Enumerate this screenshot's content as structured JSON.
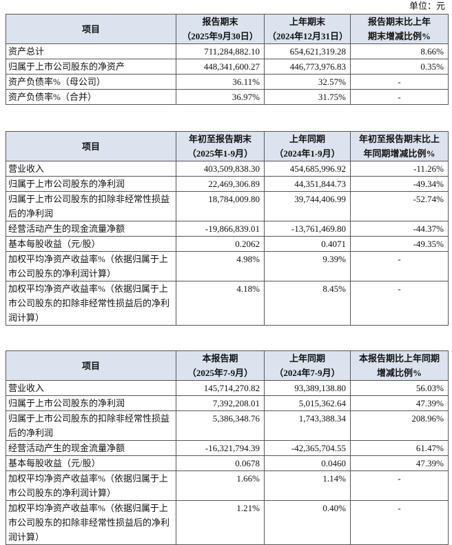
{
  "unit": "单位：元",
  "tables": [
    {
      "header": [
        [
          "项目"
        ],
        [
          "报告期末",
          "（2025年9月30日）"
        ],
        [
          "上年期末",
          "（2024年12月31日）"
        ],
        [
          "报告期末比上年",
          "期末增减比例%"
        ]
      ],
      "rows": [
        [
          "资产总计",
          "711,284,882.10",
          "654,621,319.28",
          "8.66%"
        ],
        [
          "归属于上市公司股东的净资产",
          "448,341,600.27",
          "446,773,976.83",
          "0.35%"
        ],
        [
          "资产负债率%（母公司）",
          "36.11%",
          "32.57%",
          "-"
        ],
        [
          "资产负债率%（合并）",
          "36.97%",
          "31.75%",
          "-"
        ]
      ]
    },
    {
      "header": [
        [
          "项目"
        ],
        [
          "年初至报告期末",
          "（2025年1-9月）"
        ],
        [
          "上年同期",
          "（2024年1-9月）"
        ],
        [
          "年初至报告期末比上",
          "年同期增减比例%"
        ]
      ],
      "rows": [
        [
          "营业收入",
          "403,509,838.30",
          "454,685,996.92",
          "-11.26%"
        ],
        [
          "归属于上市公司股东的净利润",
          "22,469,306.89",
          "44,351,844.73",
          "-49.34%"
        ],
        [
          "归属于上市公司股东的扣除非经常性损益后的净利润",
          "18,784,009.80",
          "39,744,406.99",
          "-52.74%"
        ],
        [
          "经营活动产生的现金流量净额",
          "-19,866,839.01",
          "-13,761,469.80",
          "-44.37%"
        ],
        [
          "基本每股收益（元/股）",
          "0.2062",
          "0.4071",
          "-49.35%"
        ],
        [
          "加权平均净资产收益率%（依据归属于上市公司股东的净利润计算）",
          "4.98%",
          "9.39%",
          "-"
        ],
        [
          "加权平均净资产收益率%（依据归属于上市公司股东的扣除非经常性损益后的净利润计算）",
          "4.18%",
          "8.45%",
          "-"
        ]
      ]
    },
    {
      "header": [
        [
          "项目"
        ],
        [
          "本报告期",
          "（2025年7-9月）"
        ],
        [
          "上年同期",
          "（2024年7-9月）"
        ],
        [
          "本报告期比上年同期",
          "增减比例%"
        ]
      ],
      "rows": [
        [
          "营业收入",
          "145,714,270.82",
          "93,389,138.80",
          "56.03%"
        ],
        [
          "归属于上市公司股东的净利润",
          "7,392,208.01",
          "5,015,362.64",
          "47.39%"
        ],
        [
          "归属于上市公司股东的扣除非经常性损益后的净利润",
          "5,386,348.76",
          "1,743,388.34",
          "208.96%"
        ],
        [
          "经营活动产生的现金流量净额",
          "-16,321,794.39",
          "-42,365,704.55",
          "61.47%"
        ],
        [
          "基本每股收益（元/股）",
          "0.0678",
          "0.0460",
          "47.39%"
        ],
        [
          "加权平均净资产收益率%（依据归属于上市公司股东的净利润计算）",
          "1.66%",
          "1.14%",
          "-"
        ],
        [
          "加权平均净资产收益率%（依据归属于上市公司股东的扣除非经常性损益后的净利润计算）",
          "1.21%",
          "0.40%",
          "-"
        ]
      ]
    }
  ]
}
